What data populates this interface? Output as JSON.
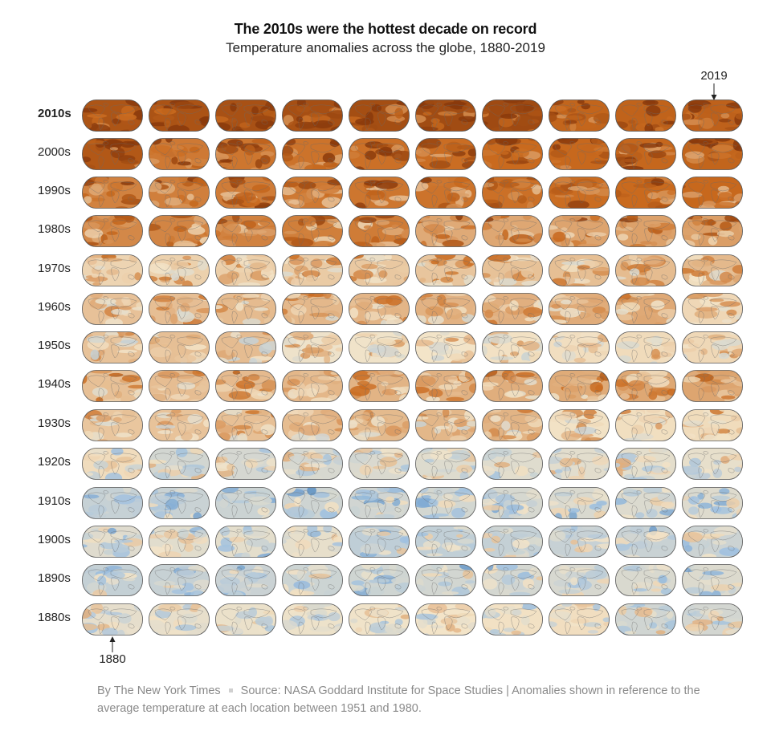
{
  "chart_data": {
    "type": "heatmap",
    "title": "The 2010s were the hottest decade on record",
    "subtitle": "Temperature anomalies across the globe, 1880-2019",
    "rows": [
      "2010s",
      "2000s",
      "1990s",
      "1980s",
      "1970s",
      "1960s",
      "1950s",
      "1940s",
      "1930s",
      "1920s",
      "1910s",
      "1900s",
      "1890s",
      "1880s"
    ],
    "highlighted_row": "2010s",
    "columns_per_row": 10,
    "start_year": 1880,
    "end_year": 2019,
    "annotations": {
      "last_year": "2019",
      "first_year": "1880"
    },
    "row_warmth": [
      0.95,
      0.8,
      0.65,
      0.5,
      0.22,
      0.22,
      0.1,
      0.3,
      0.15,
      -0.1,
      -0.28,
      -0.22,
      -0.22,
      -0.1
    ],
    "colors": {
      "warm": "#c96a1e",
      "hot": "#8a3a0c",
      "neutral": "#f3e4c8",
      "cool": "#9ec0e0",
      "cold": "#2f6fb0",
      "outline": "#555555"
    }
  },
  "footer": {
    "byline": "By The New York Times",
    "source": "Source: NASA Goddard Institute for Space Studies | Anomalies shown in reference to the average temperature at each location between 1951 and 1980."
  }
}
